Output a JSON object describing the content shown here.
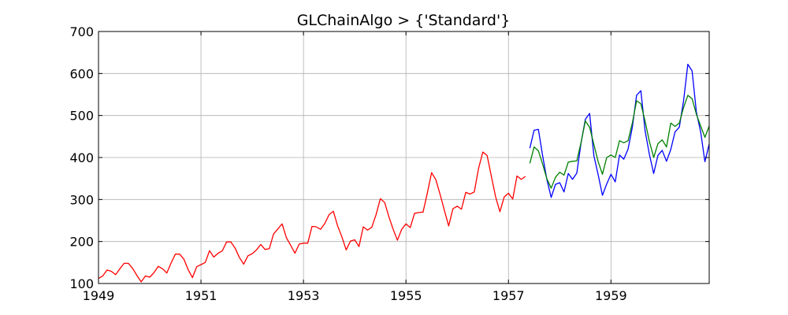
{
  "chart_data": {
    "type": "line",
    "title": "GLChainAlgo > {'Standard'}",
    "xlabel": "",
    "ylabel": "",
    "xlim": [
      1949.0,
      1960.917
    ],
    "ylim": [
      100,
      700
    ],
    "grid": true,
    "legend": "none",
    "x_ticks": [
      1949,
      1951,
      1953,
      1955,
      1957,
      1959
    ],
    "y_ticks": [
      100,
      200,
      300,
      400,
      500,
      600,
      700
    ],
    "x_tick_labels": [
      "1949",
      "1951",
      "1953",
      "1955",
      "1957",
      "1959"
    ],
    "y_tick_labels": [
      "100",
      "200",
      "300",
      "400",
      "500",
      "600",
      "700"
    ],
    "series": [
      {
        "color": "#ff0000",
        "x_start": 1949.0,
        "x_step": 0.08333,
        "values": [
          112,
          118,
          132,
          129,
          121,
          135,
          148,
          148,
          136,
          119,
          104,
          118,
          115,
          126,
          141,
          135,
          125,
          149,
          170,
          170,
          158,
          133,
          114,
          140,
          145,
          150,
          178,
          163,
          172,
          178,
          199,
          199,
          184,
          162,
          146,
          166,
          171,
          180,
          193,
          181,
          183,
          218,
          230,
          242,
          209,
          191,
          172,
          194,
          196,
          196,
          236,
          235,
          229,
          243,
          264,
          272,
          237,
          211,
          180,
          201,
          204,
          188,
          235,
          227,
          234,
          264,
          302,
          293,
          259,
          229,
          203,
          229,
          242,
          233,
          267,
          269,
          270,
          315,
          364,
          347,
          312,
          274,
          237,
          278,
          284,
          277,
          317,
          313,
          318,
          374,
          413,
          405,
          355,
          306,
          271,
          306,
          315,
          301,
          356,
          348,
          355
        ]
      },
      {
        "color": "#0000ff",
        "x_start": 1957.417,
        "x_step": 0.08333,
        "values": [
          422,
          465,
          467,
          404,
          347,
          305,
          336,
          340,
          318,
          362,
          348,
          363,
          435,
          491,
          505,
          404,
          359,
          310,
          337,
          360,
          342,
          406,
          396,
          420,
          472,
          548,
          559,
          463,
          407,
          362,
          405,
          417,
          391,
          419,
          461,
          472,
          535,
          622,
          606,
          508,
          461,
          390,
          432
        ]
      },
      {
        "color": "#008000",
        "x_start": 1957.417,
        "x_step": 0.08333,
        "values": [
          386,
          425,
          416,
          384,
          349,
          327,
          353,
          365,
          358,
          389,
          391,
          392,
          436,
          487,
          472,
          431,
          390,
          360,
          400,
          406,
          400,
          440,
          435,
          440,
          482,
          535,
          528,
          486,
          438,
          400,
          433,
          442,
          425,
          482,
          474,
          482,
          519,
          548,
          540,
          503,
          475,
          448,
          475
        ]
      }
    ]
  }
}
